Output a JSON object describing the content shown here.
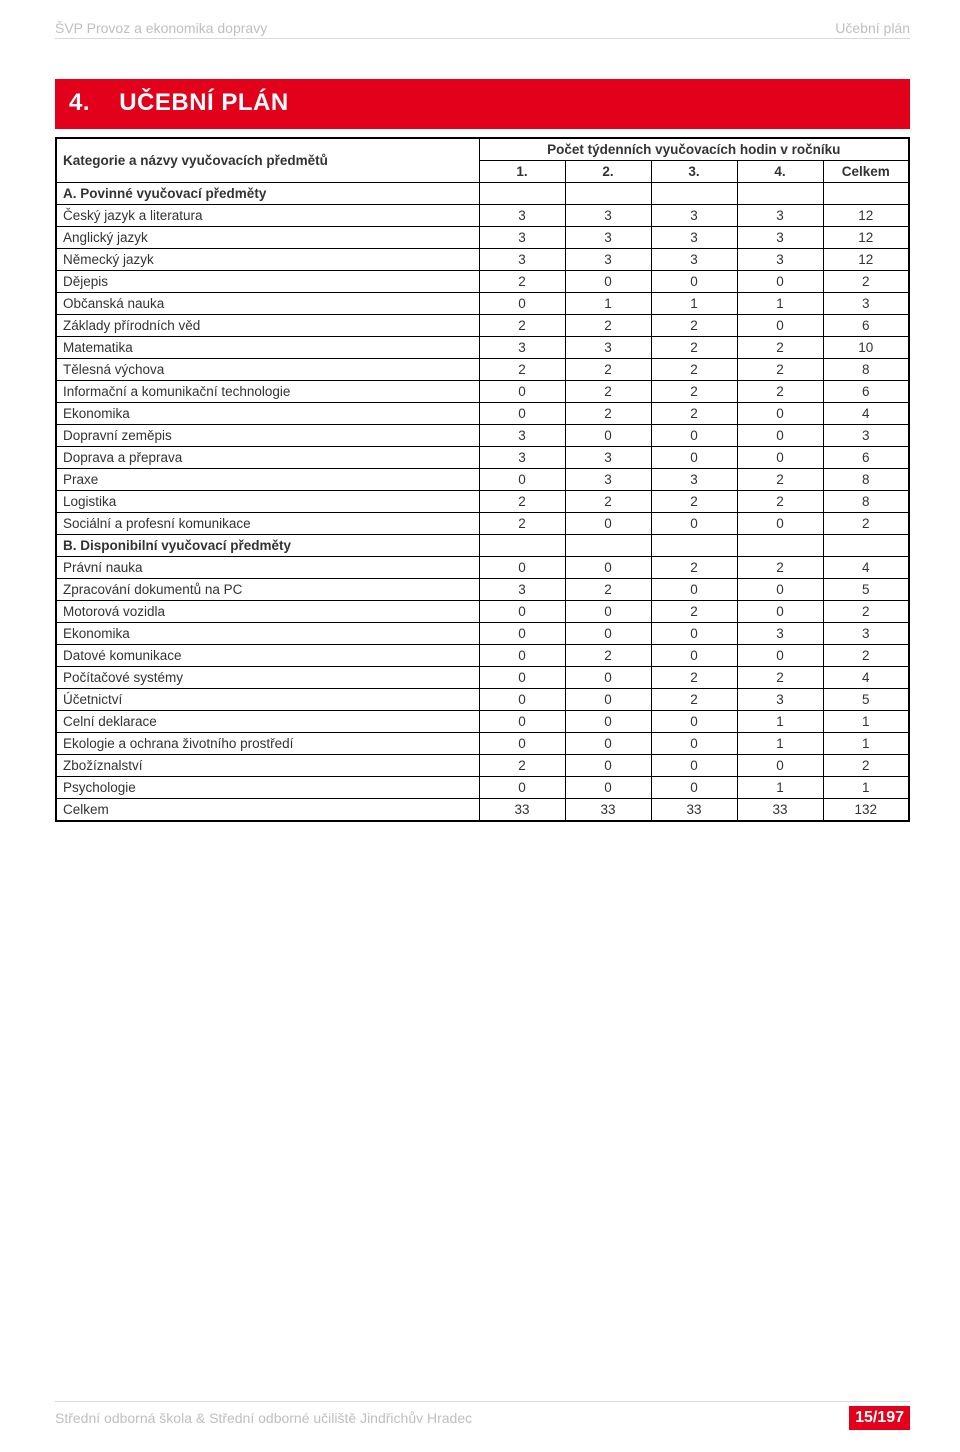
{
  "header": {
    "left": "ŠVP Provoz a ekonomika dopravy",
    "right": "Učební plán"
  },
  "section": {
    "number": "4.",
    "title": "UČEBNÍ PLÁN"
  },
  "table": {
    "head": {
      "subject_col": "Kategorie a názvy vyučovacích předmětů",
      "hours_col": "Počet týdenních vyučovacích hodin v ročníku",
      "cols": [
        "1.",
        "2.",
        "3.",
        "4.",
        "Celkem"
      ]
    },
    "rows": [
      {
        "type": "section",
        "label": "A. Povinné vyučovací předměty"
      },
      {
        "type": "data",
        "label": "Český jazyk a literatura",
        "v": [
          "3",
          "3",
          "3",
          "3",
          "12"
        ]
      },
      {
        "type": "data",
        "label": "Anglický jazyk",
        "v": [
          "3",
          "3",
          "3",
          "3",
          "12"
        ]
      },
      {
        "type": "data",
        "label": "Německý jazyk",
        "v": [
          "3",
          "3",
          "3",
          "3",
          "12"
        ]
      },
      {
        "type": "data",
        "label": "Dějepis",
        "v": [
          "2",
          "0",
          "0",
          "0",
          "2"
        ]
      },
      {
        "type": "data",
        "label": "Občanská nauka",
        "v": [
          "0",
          "1",
          "1",
          "1",
          "3"
        ]
      },
      {
        "type": "data",
        "label": "Základy přírodních věd",
        "v": [
          "2",
          "2",
          "2",
          "0",
          "6"
        ]
      },
      {
        "type": "data",
        "label": "Matematika",
        "v": [
          "3",
          "3",
          "2",
          "2",
          "10"
        ]
      },
      {
        "type": "data",
        "label": "Tělesná výchova",
        "v": [
          "2",
          "2",
          "2",
          "2",
          "8"
        ]
      },
      {
        "type": "data",
        "label": "Informační a komunikační technologie",
        "v": [
          "0",
          "2",
          "2",
          "2",
          "6"
        ]
      },
      {
        "type": "data",
        "label": "Ekonomika",
        "v": [
          "0",
          "2",
          "2",
          "0",
          "4"
        ]
      },
      {
        "type": "data",
        "label": "Dopravní zeměpis",
        "v": [
          "3",
          "0",
          "0",
          "0",
          "3"
        ]
      },
      {
        "type": "data",
        "label": "Doprava a přeprava",
        "v": [
          "3",
          "3",
          "0",
          "0",
          "6"
        ]
      },
      {
        "type": "data",
        "label": "Praxe",
        "v": [
          "0",
          "3",
          "3",
          "2",
          "8"
        ]
      },
      {
        "type": "data",
        "label": "Logistika",
        "v": [
          "2",
          "2",
          "2",
          "2",
          "8"
        ]
      },
      {
        "type": "data",
        "label": "Sociální a profesní komunikace",
        "v": [
          "2",
          "0",
          "0",
          "0",
          "2"
        ]
      },
      {
        "type": "section",
        "label": "B. Disponibilní vyučovací předměty"
      },
      {
        "type": "data",
        "label": "Právní nauka",
        "v": [
          "0",
          "0",
          "2",
          "2",
          "4"
        ]
      },
      {
        "type": "data",
        "label": "Zpracování dokumentů na PC",
        "v": [
          "3",
          "2",
          "0",
          "0",
          "5"
        ]
      },
      {
        "type": "data",
        "label": "Motorová vozidla",
        "v": [
          "0",
          "0",
          "2",
          "0",
          "2"
        ]
      },
      {
        "type": "data",
        "label": "Ekonomika",
        "v": [
          "0",
          "0",
          "0",
          "3",
          "3"
        ]
      },
      {
        "type": "data",
        "label": "Datové komunikace",
        "v": [
          "0",
          "2",
          "0",
          "0",
          "2"
        ]
      },
      {
        "type": "data",
        "label": "Počítačové systémy",
        "v": [
          "0",
          "0",
          "2",
          "2",
          "4"
        ]
      },
      {
        "type": "data",
        "label": "Účetnictví",
        "v": [
          "0",
          "0",
          "2",
          "3",
          "5"
        ]
      },
      {
        "type": "data",
        "label": "Celní deklarace",
        "v": [
          "0",
          "0",
          "0",
          "1",
          "1"
        ]
      },
      {
        "type": "data",
        "label": "Ekologie a ochrana životního prostředí",
        "v": [
          "0",
          "0",
          "0",
          "1",
          "1"
        ]
      },
      {
        "type": "data",
        "label": "Zbožíznalství",
        "v": [
          "2",
          "0",
          "0",
          "0",
          "2"
        ]
      },
      {
        "type": "data",
        "label": "Psychologie",
        "v": [
          "0",
          "0",
          "0",
          "1",
          "1"
        ]
      },
      {
        "type": "data",
        "label": "Celkem",
        "v": [
          "33",
          "33",
          "33",
          "33",
          "132"
        ]
      }
    ]
  },
  "footer": {
    "left": "Střední odborná škola & Střední odborné učiliště Jindřichův Hradec",
    "page": "15/197"
  }
}
